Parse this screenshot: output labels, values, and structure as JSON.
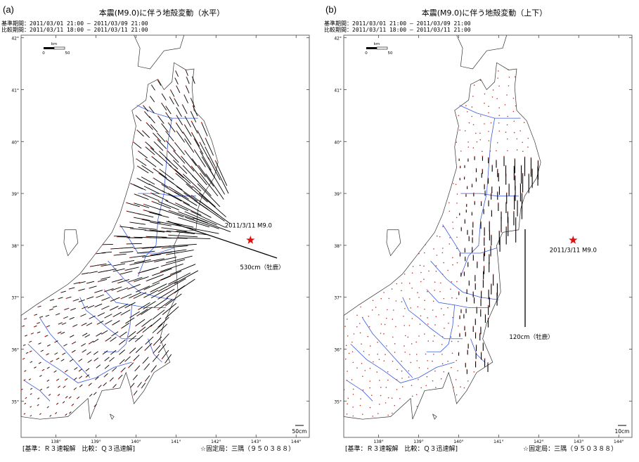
{
  "panels": [
    {
      "label": "(a)",
      "title": "本震(M9.0)に伴う地殻変動（水平）",
      "period_base": "基準期間：2011/03/01 21:00 – 2011/03/09 21:00",
      "period_compare": "比較期間：2011/03/11 18:00 – 2011/03/11 21:00",
      "epicenter_label": "2011/3/11 M9.0",
      "max_label": "530cm（牡鹿）",
      "scale_label": "50cm",
      "footer_left": "[基準：Ｒ３速報解　比較：Ｑ３迅速解]",
      "footer_right": "☆固定局：三隅（９５０３８８）"
    },
    {
      "label": "(b)",
      "title": "本震(M9.0)に伴う地殻変動（上下）",
      "period_base": "基準期間：2011/03/01 21:00 – 2011/03/09 21:00",
      "period_compare": "比較期間：2011/03/11 18:00 – 2011/03/11 21:00",
      "epicenter_label": "2011/3/11 M9.0",
      "max_label": "120cm（牡鹿）",
      "scale_label": "10cm",
      "footer_left": "[基準：Ｒ３速報解　比較：Ｑ３迅速解]",
      "footer_right": "☆固定局：三隅（９５０３８８）"
    }
  ],
  "map": {
    "lat_ticks": [
      "42°",
      "41°",
      "40°",
      "39°",
      "38°",
      "37°",
      "36°",
      "35°"
    ],
    "lon_ticks": [
      "138°",
      "139°",
      "140°",
      "141°",
      "142°",
      "143°",
      "144°"
    ],
    "km_scale_label": "km",
    "km_scale_ticks": [
      "0",
      "50"
    ]
  },
  "colors": {
    "coast": "#333333",
    "prefecture_boundary": "#3a5ae0",
    "vector": "#000000",
    "station": "#c0392b",
    "epicenter": "#e01010"
  }
}
